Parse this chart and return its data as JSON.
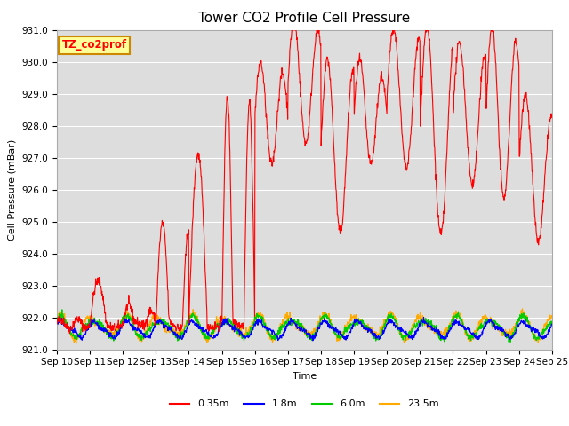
{
  "title": "Tower CO2 Profile Cell Pressure",
  "xlabel": "Time",
  "ylabel": "Cell Pressure (mBar)",
  "ylim": [
    921.0,
    931.0
  ],
  "yticks": [
    921.0,
    922.0,
    923.0,
    924.0,
    925.0,
    926.0,
    927.0,
    928.0,
    929.0,
    930.0,
    931.0
  ],
  "xtick_labels": [
    "Sep 10",
    "Sep 11",
    "Sep 12",
    "Sep 13",
    "Sep 14",
    "Sep 15",
    "Sep 16",
    "Sep 17",
    "Sep 18",
    "Sep 19",
    "Sep 20",
    "Sep 21",
    "Sep 22",
    "Sep 23",
    "Sep 24",
    "Sep 25"
  ],
  "legend_labels": [
    "0.35m",
    "1.8m",
    "6.0m",
    "23.5m"
  ],
  "legend_colors": [
    "#ff0000",
    "#0000ff",
    "#00cc00",
    "#ffaa00"
  ],
  "annotation_text": "TZ_co2prof",
  "annotation_bg": "#ffff99",
  "annotation_border": "#cc8800",
  "bg_color": "#dddddd",
  "title_fontsize": 11,
  "axis_fontsize": 8,
  "tick_fontsize": 7.5,
  "legend_fontsize": 8
}
